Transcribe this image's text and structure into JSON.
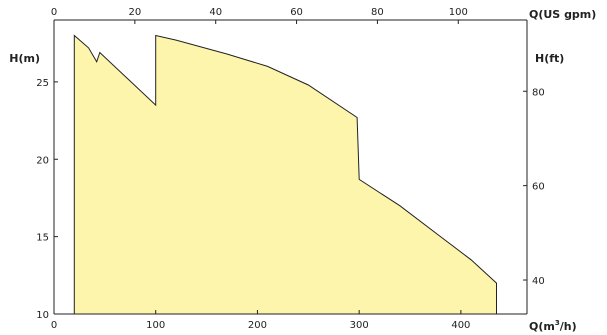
{
  "chart_data": {
    "type": "area",
    "area_color": "#fdf5ac",
    "line_color": "#222222",
    "axes": {
      "x_bottom": {
        "label": "Q(m",
        "label_sup": "3",
        "label_tail": "/h)",
        "range": [
          0,
          465
        ],
        "ticks": [
          0,
          100,
          200,
          300,
          400
        ]
      },
      "x_top": {
        "label": "Q(US gpm)",
        "range": [
          0,
          117
        ],
        "ticks": [
          0,
          20,
          40,
          60,
          80,
          100
        ]
      },
      "y_left": {
        "label": "H(m)",
        "range": [
          10,
          29
        ],
        "ticks": [
          10,
          15,
          20,
          25
        ]
      },
      "y_right": {
        "label": "H(ft)",
        "range": [
          32.8,
          95.1
        ],
        "ticks": [
          40,
          60,
          80
        ]
      }
    },
    "grid": false,
    "series": [
      {
        "values": [
          {
            "x": 20,
            "y": 10.0
          },
          {
            "x": 20,
            "y": 28.0
          },
          {
            "x": 34,
            "y": 27.2
          },
          {
            "x": 42,
            "y": 26.3
          },
          {
            "x": 45,
            "y": 26.9
          },
          {
            "x": 100,
            "y": 23.5
          },
          {
            "x": 100,
            "y": 28.0
          },
          {
            "x": 120,
            "y": 27.7
          },
          {
            "x": 170,
            "y": 26.8
          },
          {
            "x": 210,
            "y": 26.0
          },
          {
            "x": 250,
            "y": 24.8
          },
          {
            "x": 298,
            "y": 22.7
          },
          {
            "x": 300,
            "y": 18.7
          },
          {
            "x": 340,
            "y": 17.0
          },
          {
            "x": 380,
            "y": 15.0
          },
          {
            "x": 410,
            "y": 13.5
          },
          {
            "x": 435,
            "y": 12.0
          },
          {
            "x": 435,
            "y": 10.0
          }
        ]
      }
    ]
  }
}
